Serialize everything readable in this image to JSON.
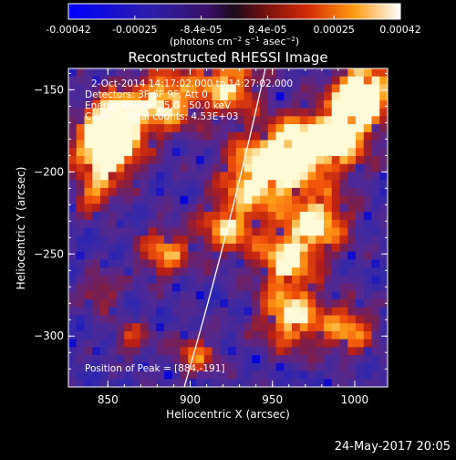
{
  "colorbar": {
    "ticks": [
      "-0.00042",
      "-0.00025",
      "-8.4e-05",
      "8.4e-05",
      "0.00025",
      "0.00042"
    ],
    "unit_label_parts": [
      "(photons cm",
      "−2",
      " s",
      "−1",
      " asec",
      "−2",
      ")"
    ]
  },
  "image": {
    "title": "Reconstructed RHESSI Image",
    "annotations": [
      "2-Oct-2014 14:17:02.000 to 14:27:02.000",
      "Detectors: 3F 6F 9F, Att 0",
      "Energy Range: 25.0 - 50.0 keV",
      "Clean     Total counts: 4.53E+03"
    ],
    "peak_label": "Position of Peak = [884,-191]"
  },
  "axes": {
    "xlabel": "Heliocentric X (arcsec)",
    "ylabel": "Heliocentric Y (arcsec)",
    "xticks": [
      "850",
      "900",
      "950",
      "1000"
    ],
    "yticks": [
      "-150",
      "-200",
      "-250",
      "-300"
    ],
    "xrange": [
      826,
      1020
    ],
    "yrange": [
      -331,
      -137
    ]
  },
  "footer": {
    "timestamp": "24-May-2017 20:05"
  },
  "colors": {
    "background": "#000000",
    "frame": "#ffffff",
    "limb": "#ffffff"
  }
}
